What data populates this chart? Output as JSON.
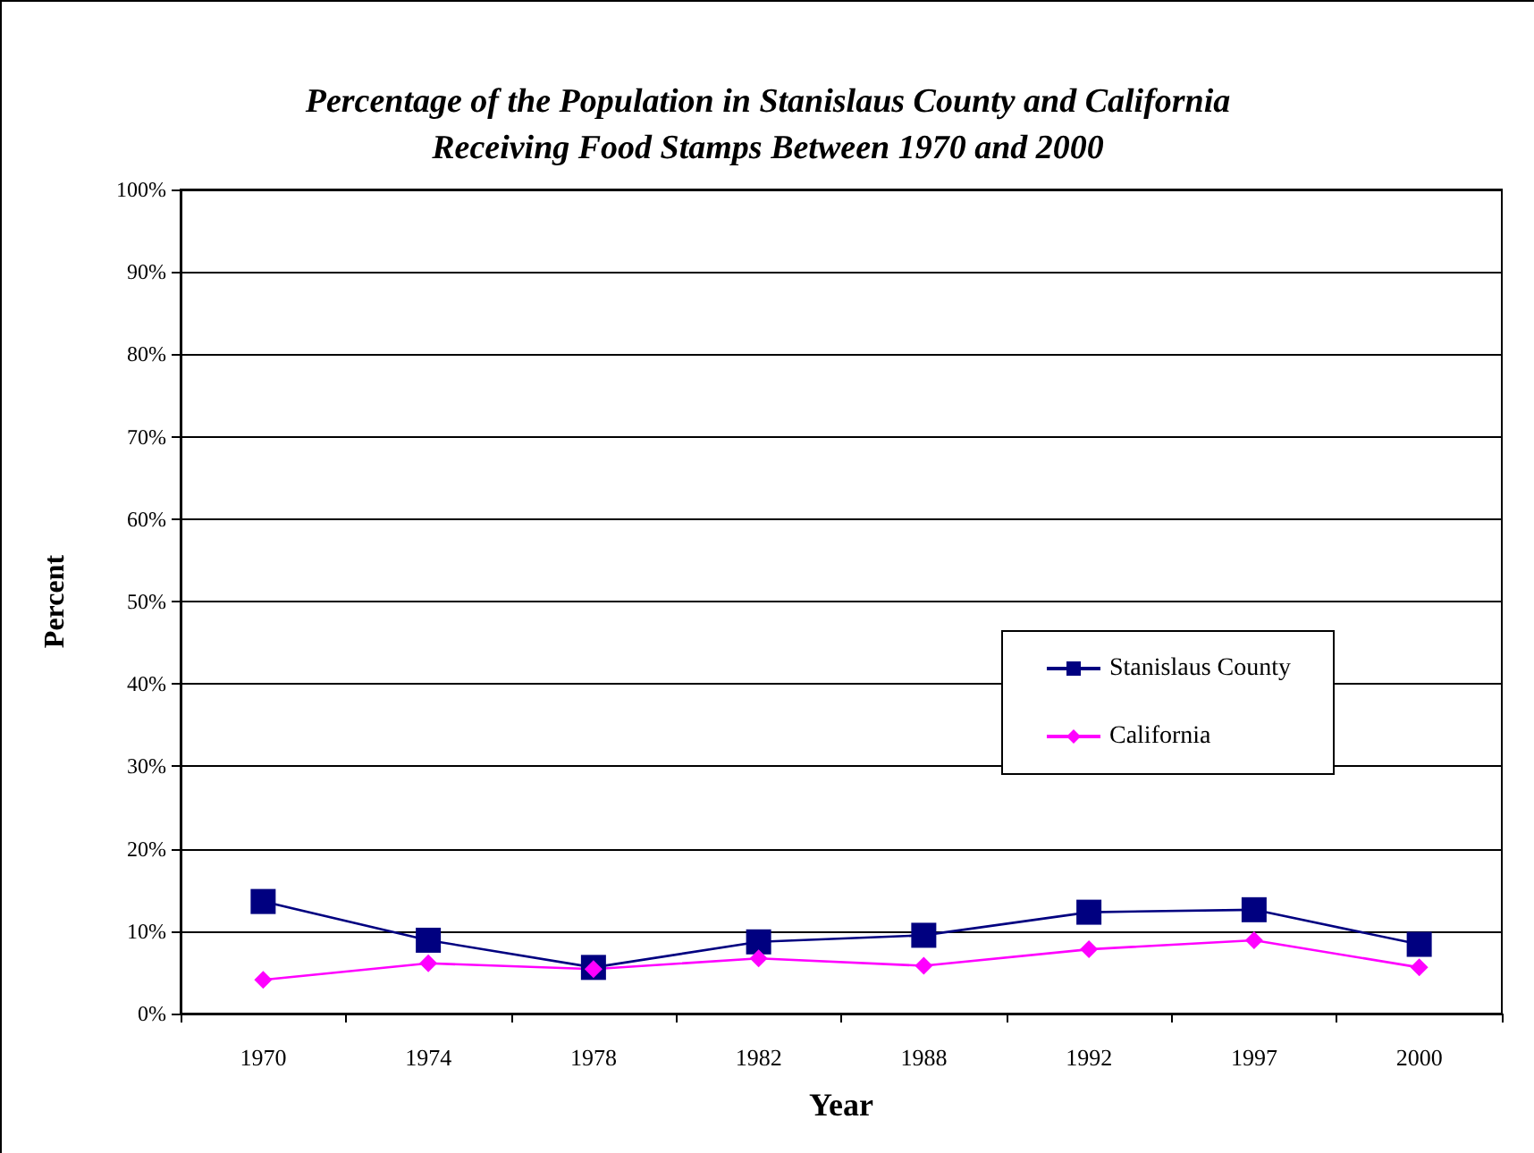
{
  "chart_data": {
    "type": "line",
    "title": "Percentage of the Population in Stanislaus County and California\nReceiving Food Stamps Between 1970 and 2000",
    "xlabel": "Year",
    "ylabel": "Percent",
    "categories": [
      "1970",
      "1974",
      "1978",
      "1982",
      "1988",
      "1992",
      "1997",
      "2000"
    ],
    "series": [
      {
        "name": "Stanislaus County",
        "color": "#000080",
        "marker": "square",
        "values": [
          13.6,
          8.9,
          5.6,
          8.7,
          9.5,
          12.3,
          12.6,
          8.4
        ]
      },
      {
        "name": "California",
        "color": "#ff00ff",
        "marker": "diamond",
        "values": [
          4.1,
          6.1,
          5.4,
          6.7,
          5.8,
          7.8,
          8.9,
          5.6
        ]
      }
    ],
    "ylim": [
      0,
      100
    ],
    "yticks": [
      {
        "value": 0,
        "label": "0%"
      },
      {
        "value": 10,
        "label": "10%"
      },
      {
        "value": 20,
        "label": "20%"
      },
      {
        "value": 30,
        "label": "30%"
      },
      {
        "value": 40,
        "label": "40%"
      },
      {
        "value": 50,
        "label": "50%"
      },
      {
        "value": 60,
        "label": "60%"
      },
      {
        "value": 70,
        "label": "70%"
      },
      {
        "value": 80,
        "label": "80%"
      },
      {
        "value": 90,
        "label": "90%"
      },
      {
        "value": 100,
        "label": "100%"
      }
    ],
    "grid": "y",
    "legend": "right",
    "line_style": "solid"
  }
}
